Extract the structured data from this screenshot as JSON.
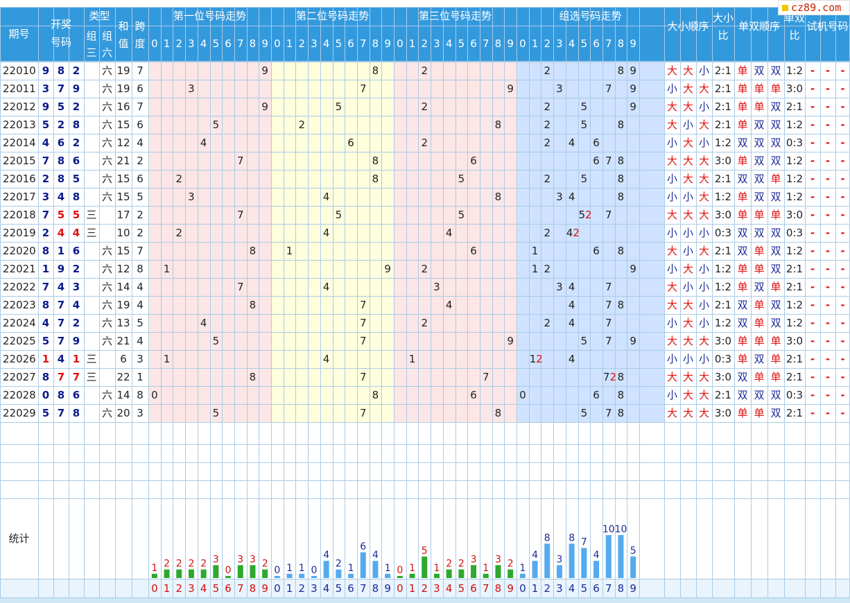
{
  "site_badge": "cz89.com",
  "headers": {
    "period": "期号",
    "draw_1": "开奖",
    "draw_2": "号码",
    "type": "类型",
    "group3": "组三",
    "group6": "组六",
    "sum": "和值",
    "span": "跨度",
    "pos1": "第一位号码走势",
    "pos2": "第二位号码走势",
    "pos3": "第三位号码走势",
    "group": "组选号码走势",
    "size_order": "大小顺序",
    "size_ratio": "大小比",
    "odd_order": "单双顺序",
    "odd_ratio": "单双比",
    "trial": "试机号码",
    "stats": "统计"
  },
  "digits": [
    "0",
    "1",
    "2",
    "3",
    "4",
    "5",
    "6",
    "7",
    "8",
    "9"
  ],
  "dash": "-",
  "rows": [
    {
      "p": "22010",
      "n": [
        9,
        8,
        2
      ],
      "t": "六",
      "s": 19,
      "k": 7,
      "sz": [
        "大",
        "大",
        "小"
      ],
      "sr": "2:1",
      "od": [
        "单",
        "双",
        "双"
      ],
      "or": "1:2"
    },
    {
      "p": "22011",
      "n": [
        3,
        7,
        9
      ],
      "t": "六",
      "s": 19,
      "k": 6,
      "sz": [
        "小",
        "大",
        "大"
      ],
      "sr": "2:1",
      "od": [
        "单",
        "单",
        "单"
      ],
      "or": "3:0"
    },
    {
      "p": "22012",
      "n": [
        9,
        5,
        2
      ],
      "t": "六",
      "s": 16,
      "k": 7,
      "sz": [
        "大",
        "大",
        "小"
      ],
      "sr": "2:1",
      "od": [
        "单",
        "单",
        "双"
      ],
      "or": "2:1"
    },
    {
      "p": "22013",
      "n": [
        5,
        2,
        8
      ],
      "t": "六",
      "s": 15,
      "k": 6,
      "sz": [
        "大",
        "小",
        "大"
      ],
      "sr": "2:1",
      "od": [
        "单",
        "双",
        "双"
      ],
      "or": "1:2"
    },
    {
      "p": "22014",
      "n": [
        4,
        6,
        2
      ],
      "t": "六",
      "s": 12,
      "k": 4,
      "sz": [
        "小",
        "大",
        "小"
      ],
      "sr": "1:2",
      "od": [
        "双",
        "双",
        "双"
      ],
      "or": "0:3"
    },
    {
      "p": "22015",
      "n": [
        7,
        8,
        6
      ],
      "t": "六",
      "s": 21,
      "k": 2,
      "sz": [
        "大",
        "大",
        "大"
      ],
      "sr": "3:0",
      "od": [
        "单",
        "双",
        "双"
      ],
      "or": "1:2"
    },
    {
      "p": "22016",
      "n": [
        2,
        8,
        5
      ],
      "t": "六",
      "s": 15,
      "k": 6,
      "sz": [
        "小",
        "大",
        "大"
      ],
      "sr": "2:1",
      "od": [
        "双",
        "双",
        "单"
      ],
      "or": "1:2"
    },
    {
      "p": "22017",
      "n": [
        3,
        4,
        8
      ],
      "t": "六",
      "s": 15,
      "k": 5,
      "sz": [
        "小",
        "小",
        "大"
      ],
      "sr": "1:2",
      "od": [
        "单",
        "双",
        "双"
      ],
      "or": "1:2"
    },
    {
      "p": "22018",
      "n": [
        7,
        5,
        5
      ],
      "t": "三",
      "s": 17,
      "k": 2,
      "sz": [
        "大",
        "大",
        "大"
      ],
      "sr": "3:0",
      "od": [
        "单",
        "单",
        "单"
      ],
      "or": "3:0"
    },
    {
      "p": "22019",
      "n": [
        2,
        4,
        4
      ],
      "t": "三",
      "s": 10,
      "k": 2,
      "sz": [
        "小",
        "小",
        "小"
      ],
      "sr": "0:3",
      "od": [
        "双",
        "双",
        "双"
      ],
      "or": "0:3"
    },
    {
      "p": "22020",
      "n": [
        8,
        1,
        6
      ],
      "t": "六",
      "s": 15,
      "k": 7,
      "sz": [
        "大",
        "小",
        "大"
      ],
      "sr": "2:1",
      "od": [
        "双",
        "单",
        "双"
      ],
      "or": "1:2"
    },
    {
      "p": "22021",
      "n": [
        1,
        9,
        2
      ],
      "t": "六",
      "s": 12,
      "k": 8,
      "sz": [
        "小",
        "大",
        "小"
      ],
      "sr": "1:2",
      "od": [
        "单",
        "单",
        "双"
      ],
      "or": "2:1"
    },
    {
      "p": "22022",
      "n": [
        7,
        4,
        3
      ],
      "t": "六",
      "s": 14,
      "k": 4,
      "sz": [
        "大",
        "小",
        "小"
      ],
      "sr": "1:2",
      "od": [
        "单",
        "双",
        "单"
      ],
      "or": "2:1"
    },
    {
      "p": "22023",
      "n": [
        8,
        7,
        4
      ],
      "t": "六",
      "s": 19,
      "k": 4,
      "sz": [
        "大",
        "大",
        "小"
      ],
      "sr": "2:1",
      "od": [
        "双",
        "单",
        "双"
      ],
      "or": "1:2"
    },
    {
      "p": "22024",
      "n": [
        4,
        7,
        2
      ],
      "t": "六",
      "s": 13,
      "k": 5,
      "sz": [
        "小",
        "大",
        "小"
      ],
      "sr": "1:2",
      "od": [
        "双",
        "单",
        "双"
      ],
      "or": "1:2"
    },
    {
      "p": "22025",
      "n": [
        5,
        7,
        9
      ],
      "t": "六",
      "s": 21,
      "k": 4,
      "sz": [
        "大",
        "大",
        "大"
      ],
      "sr": "3:0",
      "od": [
        "单",
        "单",
        "单"
      ],
      "or": "3:0"
    },
    {
      "p": "22026",
      "n": [
        1,
        4,
        1
      ],
      "t": "三",
      "s": 6,
      "k": 3,
      "sz": [
        "小",
        "小",
        "小"
      ],
      "sr": "0:3",
      "od": [
        "单",
        "双",
        "单"
      ],
      "or": "2:1"
    },
    {
      "p": "22027",
      "n": [
        8,
        7,
        7
      ],
      "t": "三",
      "s": 22,
      "k": 1,
      "sz": [
        "大",
        "大",
        "大"
      ],
      "sr": "3:0",
      "od": [
        "双",
        "单",
        "单"
      ],
      "or": "2:1"
    },
    {
      "p": "22028",
      "n": [
        0,
        8,
        6
      ],
      "t": "六",
      "s": 14,
      "k": 8,
      "sz": [
        "小",
        "大",
        "大"
      ],
      "sr": "2:1",
      "od": [
        "双",
        "双",
        "双"
      ],
      "or": "0:3"
    },
    {
      "p": "22029",
      "n": [
        5,
        7,
        8
      ],
      "t": "六",
      "s": 20,
      "k": 3,
      "sz": [
        "大",
        "大",
        "大"
      ],
      "sr": "3:0",
      "od": [
        "单",
        "单",
        "双"
      ],
      "or": "2:1"
    }
  ],
  "stats": {
    "pos1": [
      1,
      2,
      2,
      2,
      2,
      3,
      0,
      3,
      3,
      2
    ],
    "pos2": [
      0,
      1,
      1,
      0,
      4,
      2,
      1,
      6,
      4,
      1
    ],
    "pos3": [
      0,
      1,
      5,
      1,
      2,
      2,
      3,
      1,
      3,
      2
    ],
    "group": [
      1,
      4,
      8,
      3,
      8,
      7,
      4,
      10,
      10,
      5
    ]
  },
  "colors": {
    "header": "#3399dd",
    "pos1_bg": "#fde6e6",
    "pos2_bg": "#ffffdd",
    "pos3_bg": "#fde6e6",
    "group_bg": "#cfe2ff",
    "left_bg": "#eaf4fc",
    "bar_green": "#2ea82e",
    "bar_blue": "#55aaee",
    "stat_red": "#d01010",
    "stat_blue": "#1a2a9a"
  }
}
